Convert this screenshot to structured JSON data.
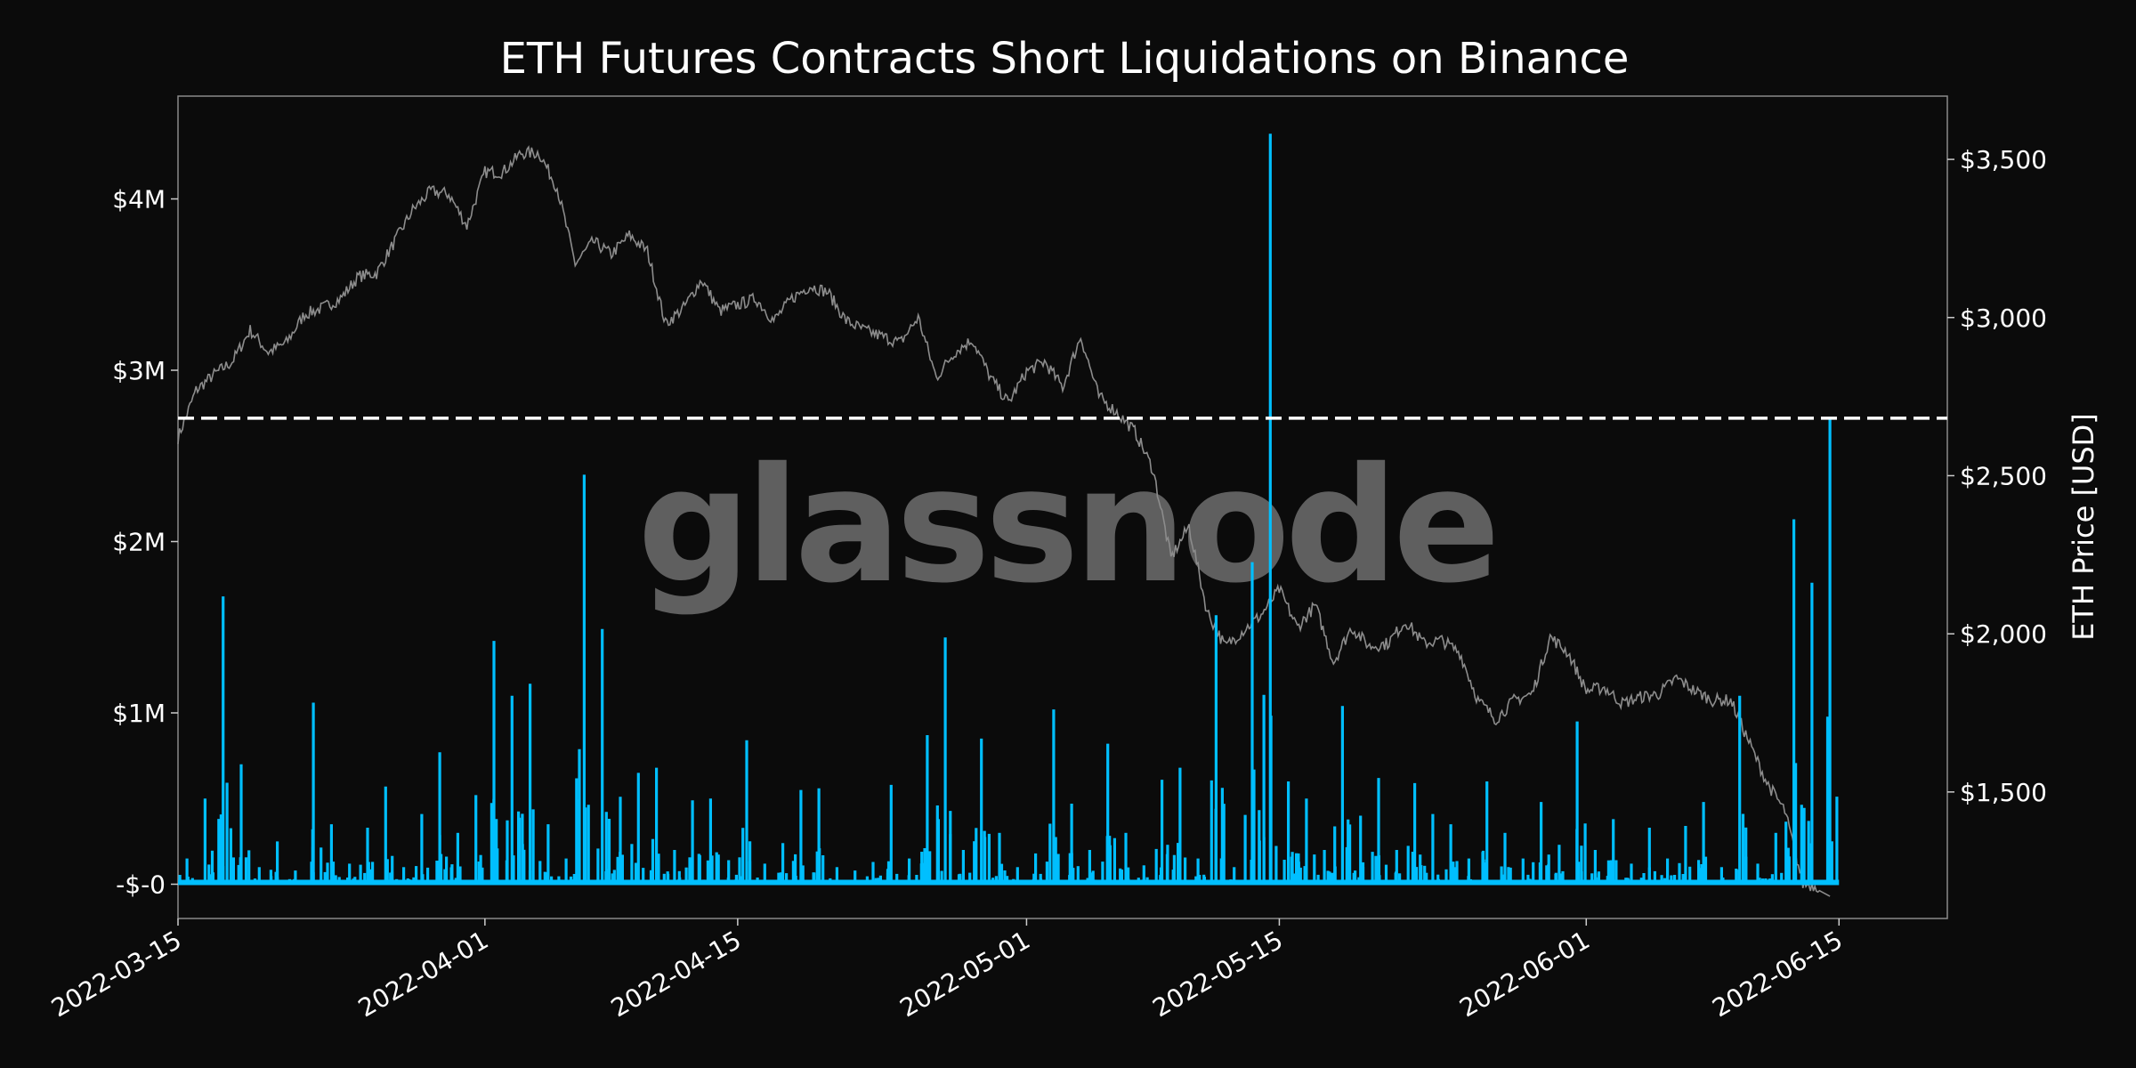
{
  "chart_data": {
    "type": "line",
    "title": "ETH Futures Contracts Short Liquidations on Binance",
    "watermark": "glassnode",
    "xlabel": "",
    "ylabel_left": "",
    "ylabel_right": "ETH Price [USD]",
    "x_range": [
      "2022-03-15",
      "2022-06-21"
    ],
    "x_ticks": [
      "2022-03-15",
      "2022-04-01",
      "2022-04-15",
      "2022-05-01",
      "2022-05-15",
      "2022-06-01",
      "2022-06-15"
    ],
    "ylim_left": [
      -200000,
      4600000
    ],
    "y_ticks_left": [
      {
        "value": 0,
        "label": "-$-0"
      },
      {
        "value": 1000000,
        "label": "$1M"
      },
      {
        "value": 2000000,
        "label": "$2M"
      },
      {
        "value": 3000000,
        "label": "$3M"
      },
      {
        "value": 4000000,
        "label": "$4M"
      }
    ],
    "ylim_right": [
      1100,
      3700
    ],
    "y_ticks_right": [
      {
        "value": 1500,
        "label": "$1,500"
      },
      {
        "value": 2000,
        "label": "$2,000"
      },
      {
        "value": 2500,
        "label": "$2,500"
      },
      {
        "value": 3000,
        "label": "$3,000"
      },
      {
        "value": 3500,
        "label": "$3,500"
      }
    ],
    "threshold_line": {
      "value": 2720000,
      "style": "dashed",
      "color": "#ffffff"
    },
    "grid": false,
    "series": [
      {
        "axis": "left",
        "color": "#00bfff",
        "style": "spikes",
        "points": [
          [
            "2022-03-15",
            150000
          ],
          [
            "2022-03-16",
            500000
          ],
          [
            "2022-03-17",
            1680000
          ],
          [
            "2022-03-18",
            700000
          ],
          [
            "2022-03-19",
            100000
          ],
          [
            "2022-03-20",
            250000
          ],
          [
            "2022-03-21",
            80000
          ],
          [
            "2022-03-22",
            1060000
          ],
          [
            "2022-03-23",
            350000
          ],
          [
            "2022-03-24",
            120000
          ],
          [
            "2022-03-25",
            330000
          ],
          [
            "2022-03-26",
            570000
          ],
          [
            "2022-03-27",
            100000
          ],
          [
            "2022-03-28",
            410000
          ],
          [
            "2022-03-29",
            770000
          ],
          [
            "2022-03-30",
            300000
          ],
          [
            "2022-03-31",
            520000
          ],
          [
            "2022-04-01",
            1420000
          ],
          [
            "2022-04-02",
            1100000
          ],
          [
            "2022-04-03",
            1170000
          ],
          [
            "2022-04-04",
            350000
          ],
          [
            "2022-04-05",
            150000
          ],
          [
            "2022-04-06",
            2390000
          ],
          [
            "2022-04-07",
            1490000
          ],
          [
            "2022-04-08",
            510000
          ],
          [
            "2022-04-09",
            650000
          ],
          [
            "2022-04-10",
            680000
          ],
          [
            "2022-04-11",
            200000
          ],
          [
            "2022-04-12",
            490000
          ],
          [
            "2022-04-13",
            500000
          ],
          [
            "2022-04-14",
            140000
          ],
          [
            "2022-04-15",
            840000
          ],
          [
            "2022-04-16",
            120000
          ],
          [
            "2022-04-17",
            240000
          ],
          [
            "2022-04-18",
            550000
          ],
          [
            "2022-04-19",
            560000
          ],
          [
            "2022-04-20",
            100000
          ],
          [
            "2022-04-21",
            80000
          ],
          [
            "2022-04-22",
            130000
          ],
          [
            "2022-04-23",
            580000
          ],
          [
            "2022-04-24",
            150000
          ],
          [
            "2022-04-25",
            870000
          ],
          [
            "2022-04-26",
            1440000
          ],
          [
            "2022-04-27",
            200000
          ],
          [
            "2022-04-28",
            850000
          ],
          [
            "2022-04-29",
            300000
          ],
          [
            "2022-04-30",
            100000
          ],
          [
            "2022-05-01",
            180000
          ],
          [
            "2022-05-02",
            1020000
          ],
          [
            "2022-05-03",
            470000
          ],
          [
            "2022-05-04",
            200000
          ],
          [
            "2022-05-05",
            820000
          ],
          [
            "2022-05-06",
            300000
          ],
          [
            "2022-05-07",
            110000
          ],
          [
            "2022-05-08",
            610000
          ],
          [
            "2022-05-09",
            680000
          ],
          [
            "2022-05-10",
            150000
          ],
          [
            "2022-05-11",
            1570000
          ],
          [
            "2022-05-12",
            100000
          ],
          [
            "2022-05-13",
            1880000
          ],
          [
            "2022-05-14",
            4380000
          ],
          [
            "2022-05-15",
            600000
          ],
          [
            "2022-05-16",
            500000
          ],
          [
            "2022-05-17",
            200000
          ],
          [
            "2022-05-18",
            1040000
          ],
          [
            "2022-05-19",
            400000
          ],
          [
            "2022-05-20",
            620000
          ],
          [
            "2022-05-21",
            200000
          ],
          [
            "2022-05-22",
            590000
          ],
          [
            "2022-05-23",
            410000
          ],
          [
            "2022-05-24",
            350000
          ],
          [
            "2022-05-25",
            150000
          ],
          [
            "2022-05-26",
            600000
          ],
          [
            "2022-05-27",
            300000
          ],
          [
            "2022-05-28",
            150000
          ],
          [
            "2022-05-29",
            480000
          ],
          [
            "2022-05-30",
            230000
          ],
          [
            "2022-05-31",
            950000
          ],
          [
            "2022-06-01",
            200000
          ],
          [
            "2022-06-02",
            380000
          ],
          [
            "2022-06-03",
            120000
          ],
          [
            "2022-06-04",
            330000
          ],
          [
            "2022-06-05",
            150000
          ],
          [
            "2022-06-06",
            340000
          ],
          [
            "2022-06-07",
            480000
          ],
          [
            "2022-06-08",
            100000
          ],
          [
            "2022-06-09",
            1100000
          ],
          [
            "2022-06-10",
            120000
          ],
          [
            "2022-06-11",
            300000
          ],
          [
            "2022-06-12",
            2130000
          ],
          [
            "2022-06-13",
            1760000
          ],
          [
            "2022-06-14",
            2720000
          ]
        ]
      },
      {
        "axis": "right",
        "color": "#8c8c8c",
        "style": "line",
        "points": [
          [
            "2022-03-15",
            2620
          ],
          [
            "2022-03-16",
            2770
          ],
          [
            "2022-03-17",
            2820
          ],
          [
            "2022-03-18",
            2860
          ],
          [
            "2022-03-19",
            2960
          ],
          [
            "2022-03-20",
            2890
          ],
          [
            "2022-03-21",
            2920
          ],
          [
            "2022-03-22",
            3010
          ],
          [
            "2022-03-23",
            3030
          ],
          [
            "2022-03-24",
            3060
          ],
          [
            "2022-03-25",
            3130
          ],
          [
            "2022-03-26",
            3140
          ],
          [
            "2022-03-27",
            3240
          ],
          [
            "2022-03-28",
            3340
          ],
          [
            "2022-03-29",
            3400
          ],
          [
            "2022-03-30",
            3390
          ],
          [
            "2022-03-31",
            3290
          ],
          [
            "2022-04-01",
            3460
          ],
          [
            "2022-04-02",
            3460
          ],
          [
            "2022-04-03",
            3520
          ],
          [
            "2022-04-04",
            3520
          ],
          [
            "2022-04-05",
            3410
          ],
          [
            "2022-04-06",
            3170
          ],
          [
            "2022-04-07",
            3240
          ],
          [
            "2022-04-08",
            3200
          ],
          [
            "2022-04-09",
            3260
          ],
          [
            "2022-04-10",
            3210
          ],
          [
            "2022-04-11",
            2980
          ],
          [
            "2022-04-12",
            3030
          ],
          [
            "2022-04-13",
            3120
          ],
          [
            "2022-04-14",
            3020
          ],
          [
            "2022-04-15",
            3040
          ],
          [
            "2022-04-16",
            3060
          ],
          [
            "2022-04-17",
            2990
          ],
          [
            "2022-04-18",
            3060
          ],
          [
            "2022-04-19",
            3100
          ],
          [
            "2022-04-20",
            3080
          ],
          [
            "2022-04-21",
            2990
          ],
          [
            "2022-04-22",
            2960
          ],
          [
            "2022-04-23",
            2940
          ],
          [
            "2022-04-24",
            2920
          ],
          [
            "2022-04-25",
            3000
          ],
          [
            "2022-04-26",
            2810
          ],
          [
            "2022-04-27",
            2890
          ],
          [
            "2022-04-28",
            2930
          ],
          [
            "2022-04-29",
            2810
          ],
          [
            "2022-04-30",
            2730
          ],
          [
            "2022-05-01",
            2830
          ],
          [
            "2022-05-02",
            2860
          ],
          [
            "2022-05-03",
            2780
          ],
          [
            "2022-05-04",
            2940
          ],
          [
            "2022-05-05",
            2750
          ],
          [
            "2022-05-06",
            2700
          ],
          [
            "2022-05-07",
            2640
          ],
          [
            "2022-05-08",
            2520
          ],
          [
            "2022-05-09",
            2240
          ],
          [
            "2022-05-10",
            2340
          ],
          [
            "2022-05-11",
            2070
          ],
          [
            "2022-05-12",
            1960
          ],
          [
            "2022-05-13",
            2010
          ],
          [
            "2022-05-14",
            2060
          ],
          [
            "2022-05-15",
            2140
          ],
          [
            "2022-05-16",
            2020
          ],
          [
            "2022-05-17",
            2090
          ],
          [
            "2022-05-18",
            1910
          ],
          [
            "2022-05-19",
            2020
          ],
          [
            "2022-05-20",
            1960
          ],
          [
            "2022-05-21",
            1970
          ],
          [
            "2022-05-22",
            2040
          ],
          [
            "2022-05-23",
            1970
          ],
          [
            "2022-05-24",
            1980
          ],
          [
            "2022-05-25",
            1940
          ],
          [
            "2022-05-26",
            1790
          ],
          [
            "2022-05-27",
            1730
          ],
          [
            "2022-05-28",
            1790
          ],
          [
            "2022-05-29",
            1810
          ],
          [
            "2022-05-30",
            1990
          ],
          [
            "2022-05-31",
            1940
          ],
          [
            "2022-06-01",
            1820
          ],
          [
            "2022-06-02",
            1830
          ],
          [
            "2022-06-03",
            1780
          ],
          [
            "2022-06-04",
            1800
          ],
          [
            "2022-06-05",
            1810
          ],
          [
            "2022-06-06",
            1860
          ],
          [
            "2022-06-07",
            1820
          ],
          [
            "2022-06-08",
            1790
          ],
          [
            "2022-06-09",
            1790
          ],
          [
            "2022-06-10",
            1660
          ],
          [
            "2022-06-11",
            1530
          ],
          [
            "2022-06-12",
            1440
          ],
          [
            "2022-06-13",
            1210
          ],
          [
            "2022-06-14",
            1200
          ]
        ]
      }
    ]
  }
}
